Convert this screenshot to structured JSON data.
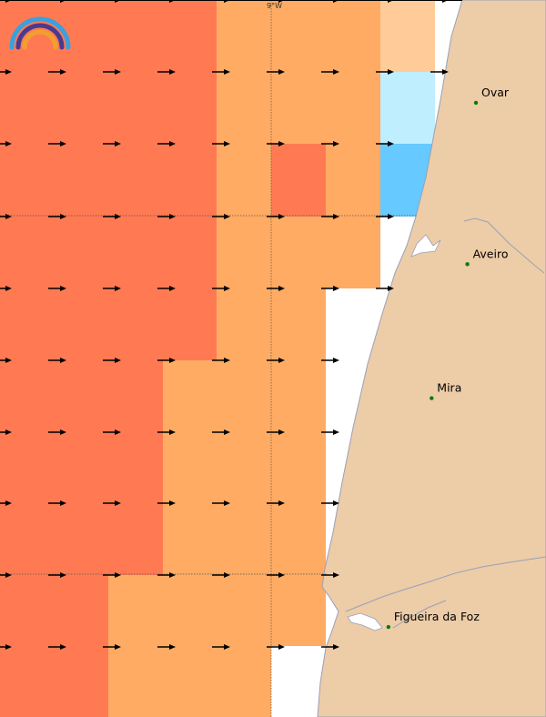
{
  "map": {
    "graticule_label": "9°W",
    "places": [
      {
        "name": "Ovar",
        "lon": -8.626,
        "lat": 40.858
      },
      {
        "name": "Aveiro",
        "lon": -8.649,
        "lat": 40.64
      },
      {
        "name": "Mira",
        "lon": -8.745,
        "lat": 40.459
      },
      {
        "name": "Figueira da Foz",
        "lon": -8.861,
        "lat": 40.15
      }
    ],
    "colors": {
      "sea_no_data": "#ffffff",
      "land": "#edcca8",
      "coastline": "#9aa0b5",
      "place_dot": "#0a7a0a",
      "arrow": "#000000",
      "graticule": "#555555"
    },
    "legend_colors": {
      "very_high": "#ff7a52",
      "high": "#ffab63",
      "moderate": "#ffcc99",
      "low": "#bfeeff",
      "very_low": "#66c9ff"
    },
    "logo": {
      "name": "rainbow-logo-icon",
      "colors": [
        "#3aa0e0",
        "#4b3a8c",
        "#f0a030"
      ]
    }
  }
}
